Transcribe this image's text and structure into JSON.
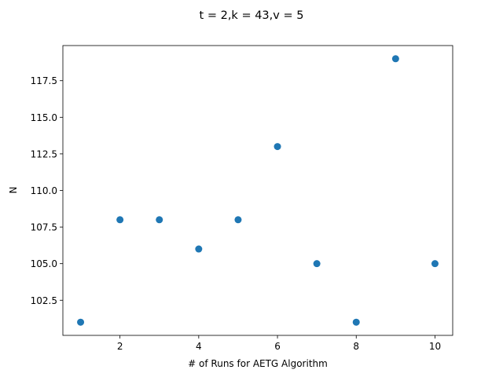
{
  "chart_data": {
    "type": "scatter",
    "title": "t = 2,k = 43,v = 5",
    "xlabel": "# of Runs for AETG Algorithm",
    "ylabel": "N",
    "x": [
      1,
      2,
      3,
      4,
      5,
      6,
      7,
      8,
      9,
      10
    ],
    "y": [
      101,
      108,
      108,
      106,
      108,
      113,
      105,
      101,
      119,
      105
    ],
    "xlim": [
      0.55,
      10.45
    ],
    "ylim": [
      100.1,
      119.9
    ],
    "xticks": [
      2,
      4,
      6,
      8,
      10
    ],
    "xtick_labels": [
      "2",
      "4",
      "6",
      "8",
      "10"
    ],
    "yticks": [
      102.5,
      105.0,
      107.5,
      110.0,
      112.5,
      115.0,
      117.5
    ],
    "ytick_labels": [
      "102.5",
      "105.0",
      "107.5",
      "110.0",
      "112.5",
      "115.0",
      "117.5"
    ],
    "grid": false,
    "marker_color": "#1f77b4"
  }
}
